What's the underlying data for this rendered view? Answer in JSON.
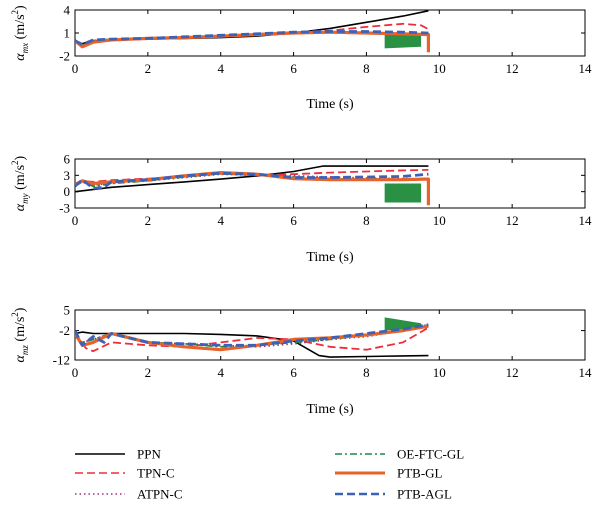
{
  "chart_data": [
    {
      "type": "line",
      "xlabel": "Time (s)",
      "ylabel": {
        "symbol": "α",
        "sub": "mx",
        "unit_pre": " (m/s",
        "unit_sup": "2",
        "unit_post": ")"
      },
      "xlim": [
        0,
        14
      ],
      "ylim": [
        -2,
        4
      ],
      "xticks": [
        0,
        2,
        4,
        6,
        8,
        10,
        12,
        14
      ],
      "yticks": [
        -2,
        1,
        4
      ],
      "series": [
        {
          "name": "PPN",
          "x": [
            0,
            0.2,
            0.5,
            1,
            2,
            3,
            4,
            5,
            6,
            7,
            8,
            9,
            9.7
          ],
          "y": [
            0,
            -0.4,
            0,
            0.1,
            0.2,
            0.3,
            0.4,
            0.6,
            1.0,
            1.6,
            2.4,
            3.2,
            3.9
          ]
        },
        {
          "name": "TPN-C",
          "x": [
            0,
            0.2,
            0.5,
            1,
            2,
            3,
            4,
            5,
            6,
            7,
            8,
            9,
            9.5,
            9.7
          ],
          "y": [
            0,
            -0.6,
            0,
            0.1,
            0.2,
            0.4,
            0.6,
            0.8,
            1.1,
            1.3,
            1.8,
            2.2,
            2.0,
            1.5
          ]
        },
        {
          "name": "ATPN-C",
          "x": [
            0,
            0.2,
            0.5,
            1,
            2,
            3,
            4,
            5,
            6,
            7,
            8,
            9,
            9.7
          ],
          "y": [
            0,
            -0.7,
            0,
            0.2,
            0.3,
            0.4,
            0.6,
            0.8,
            1.0,
            1.1,
            1.0,
            0.9,
            0.8
          ]
        },
        {
          "name": "OE-FTC-GL",
          "x": [
            0,
            0.2,
            0.5,
            1,
            2,
            3,
            4,
            5,
            6,
            7,
            8,
            9,
            9.7
          ],
          "y": [
            0,
            -0.6,
            0,
            0.2,
            0.3,
            0.4,
            0.6,
            0.9,
            1.1,
            1.1,
            1.0,
            0.9,
            0.8
          ]
        },
        {
          "name": "PTB-GL",
          "x": [
            0,
            0.2,
            0.5,
            1,
            2,
            3,
            4,
            5,
            6,
            7,
            8,
            9,
            9.6,
            9.7,
            9.7
          ],
          "y": [
            0,
            -0.8,
            -0.2,
            0.1,
            0.3,
            0.4,
            0.6,
            0.8,
            1.0,
            1.1,
            1.0,
            0.9,
            0.8,
            0.8,
            -1.5
          ]
        },
        {
          "name": "PTB-AGL",
          "x": [
            0,
            0.2,
            0.5,
            1,
            2,
            3,
            4,
            5,
            6,
            7,
            8,
            9,
            9.7
          ],
          "y": [
            0,
            -0.5,
            0.1,
            0.2,
            0.3,
            0.5,
            0.7,
            0.9,
            1.1,
            1.2,
            1.2,
            1.1,
            1.0
          ]
        }
      ],
      "fill": {
        "series": "OE-FTC-GL",
        "x": [
          8.5,
          9.5
        ],
        "y_top": [
          0.9,
          0.8
        ],
        "y_bottom": [
          -1.0,
          -0.8
        ]
      }
    },
    {
      "type": "line",
      "xlabel": "Time (s)",
      "ylabel": {
        "symbol": "α",
        "sub": "my",
        "unit_pre": " (m/s",
        "unit_sup": "2",
        "unit_post": ")"
      },
      "xlim": [
        0,
        14
      ],
      "ylim": [
        -3,
        6
      ],
      "xticks": [
        0,
        2,
        4,
        6,
        8,
        10,
        12,
        14
      ],
      "yticks": [
        -3,
        0,
        3,
        6
      ],
      "series": [
        {
          "name": "PPN",
          "x": [
            0,
            1,
            2,
            3,
            4,
            5,
            6,
            6.8,
            7.5,
            8.5,
            9.7
          ],
          "y": [
            0,
            0.8,
            1.3,
            1.8,
            2.3,
            2.9,
            3.7,
            4.7,
            4.7,
            4.7,
            4.7
          ]
        },
        {
          "name": "TPN-C",
          "x": [
            0,
            0.2,
            0.5,
            1,
            2,
            3,
            4,
            5,
            6,
            7,
            8,
            9,
            9.7
          ],
          "y": [
            1.5,
            2.0,
            1.8,
            2.1,
            2.4,
            2.8,
            3.3,
            3.0,
            3.2,
            3.5,
            3.7,
            3.9,
            4.0
          ]
        },
        {
          "name": "ATPN-C",
          "x": [
            0,
            0.2,
            0.5,
            1,
            2,
            3,
            4,
            5,
            6,
            7,
            8,
            9,
            9.7
          ],
          "y": [
            1.2,
            1.8,
            1.2,
            1.6,
            2.0,
            2.6,
            3.2,
            3.0,
            2.9,
            2.7,
            2.5,
            2.4,
            2.3
          ]
        },
        {
          "name": "OE-FTC-GL",
          "x": [
            0,
            0.2,
            0.5,
            1,
            2,
            3,
            4,
            5,
            6,
            7,
            8,
            9,
            9.7
          ],
          "y": [
            1.0,
            1.8,
            1.0,
            1.5,
            2.0,
            2.7,
            3.3,
            3.1,
            2.7,
            2.4,
            2.3,
            2.3,
            2.3
          ]
        },
        {
          "name": "PTB-GL",
          "x": [
            0,
            0.2,
            0.5,
            1,
            2,
            3,
            4,
            5,
            6,
            7,
            8,
            9,
            9.6,
            9.7,
            9.7
          ],
          "y": [
            1.2,
            2.0,
            1.5,
            1.8,
            2.2,
            2.9,
            3.5,
            3.2,
            2.4,
            2.2,
            2.2,
            2.2,
            2.3,
            2.3,
            -2.5
          ]
        },
        {
          "name": "PTB-AGL",
          "x": [
            0,
            0.2,
            0.5,
            0.8,
            1,
            2,
            3,
            4,
            5,
            6,
            7,
            8,
            9,
            9.7
          ],
          "y": [
            1.0,
            2.2,
            0.6,
            0.8,
            1.8,
            2.2,
            2.9,
            3.4,
            3.2,
            2.6,
            2.6,
            2.7,
            2.8,
            3.2
          ]
        }
      ],
      "fill": {
        "series": "OE-FTC-GL",
        "x": [
          8.5,
          9.5
        ],
        "y_top": [
          1.5,
          1.5
        ],
        "y_bottom": [
          -2.0,
          -2.0
        ]
      }
    },
    {
      "type": "line",
      "xlabel": "Time (s)",
      "ylabel": {
        "symbol": "α",
        "sub": "mz",
        "unit_pre": " (m/s",
        "unit_sup": "2",
        "unit_post": ")"
      },
      "xlim": [
        0,
        14
      ],
      "ylim": [
        -12,
        5
      ],
      "xticks": [
        0,
        2,
        4,
        6,
        8,
        10,
        12,
        14
      ],
      "yticks": [
        -12,
        -2,
        5
      ],
      "series": [
        {
          "name": "PPN",
          "x": [
            0,
            0.2,
            0.5,
            1,
            2,
            3,
            4,
            5,
            6,
            6.7,
            7,
            8,
            9,
            9.7
          ],
          "y": [
            -3,
            -2.5,
            -3,
            -3,
            -3,
            -3,
            -3.3,
            -3.8,
            -5.5,
            -10.5,
            -11,
            -10.8,
            -10.6,
            -10.5
          ]
        },
        {
          "name": "TPN-C",
          "x": [
            0,
            0.3,
            0.5,
            1,
            2,
            3,
            4,
            5,
            6,
            7,
            8,
            9,
            9.7
          ],
          "y": [
            -3,
            -8,
            -9,
            -6,
            -7,
            -7.5,
            -6,
            -4.5,
            -5,
            -7.5,
            -8.5,
            -6,
            -1
          ]
        },
        {
          "name": "ATPN-C",
          "x": [
            0,
            0.2,
            0.5,
            1,
            2,
            3,
            4,
            5,
            6,
            7,
            8,
            9,
            9.7
          ],
          "y": [
            -4,
            -6,
            -5,
            -3,
            -6,
            -6.5,
            -7,
            -7.5,
            -6.5,
            -5,
            -4,
            -2,
            0
          ]
        },
        {
          "name": "OE-FTC-GL",
          "x": [
            0,
            0.2,
            0.5,
            1,
            2,
            3,
            4,
            5,
            6,
            7,
            8,
            9,
            9.7
          ],
          "y": [
            -4,
            -6,
            -5,
            -3,
            -6,
            -6.5,
            -7.5,
            -7,
            -6,
            -5,
            -3.5,
            -2,
            0
          ]
        },
        {
          "name": "PTB-GL",
          "x": [
            0,
            0.2,
            0.5,
            1,
            2,
            3,
            4,
            5,
            6,
            7,
            8,
            9,
            9.7
          ],
          "y": [
            -3,
            -7,
            -6,
            -3,
            -6,
            -7.5,
            -8.5,
            -7,
            -5,
            -4.5,
            -3.5,
            -2,
            -0.5
          ]
        },
        {
          "name": "PTB-AGL",
          "x": [
            0,
            0.2,
            0.5,
            0.8,
            1,
            2,
            3,
            4,
            5,
            6,
            7,
            8,
            9,
            9.7
          ],
          "y": [
            -2,
            -7,
            -4,
            -6,
            -3,
            -6,
            -6.5,
            -7,
            -7,
            -5.5,
            -4.5,
            -3,
            -1.5,
            0
          ]
        }
      ],
      "fill": {
        "series": "OE-FTC-GL",
        "x": [
          8.5,
          9.5
        ],
        "y_top": [
          2.5,
          0.5
        ],
        "y_bottom": [
          -2.0,
          -1.0
        ]
      }
    }
  ],
  "legend": {
    "placement": "bottom",
    "entries": [
      {
        "name": "PPN",
        "color": "#000000",
        "dash": "solid"
      },
      {
        "name": "TPN-C",
        "color": "#ee2d3b",
        "dash": "dashed"
      },
      {
        "name": "ATPN-C",
        "color": "#a0307a",
        "dash": "dotted"
      },
      {
        "name": "OE-FTC-GL",
        "color": "#1d8a3a",
        "dash": "dashdot"
      },
      {
        "name": "PTB-GL",
        "color": "#e8632a",
        "dash": "solid"
      },
      {
        "name": "PTB-AGL",
        "color": "#3b62b8",
        "dash": "dashed"
      }
    ]
  }
}
